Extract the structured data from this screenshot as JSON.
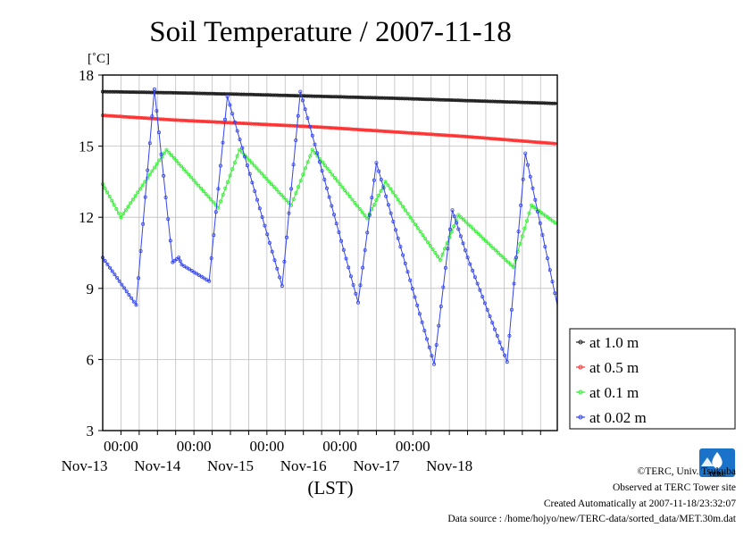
{
  "chart_data": {
    "type": "line",
    "title": "Soil Temperature / 2007-11-18",
    "ylabel": "[˚C]",
    "xlabel": "(LST)",
    "ylim": [
      3,
      18
    ],
    "yticks": [
      3,
      6,
      9,
      12,
      15,
      18
    ],
    "xlim": [
      "2007-11-12 18:00",
      "2007-11-18 23:30"
    ],
    "xtick_times": [
      "2007-11-13 00:00",
      "2007-11-14 00:00",
      "2007-11-15 00:00",
      "2007-11-16 00:00",
      "2007-11-17 00:00"
    ],
    "xtick_labels": [
      "00:00",
      "00:00",
      "00:00",
      "00:00",
      "00:00"
    ],
    "date_labels": [
      "Nov-13",
      "Nov-14",
      "Nov-15",
      "Nov-16",
      "Nov-17",
      "Nov-18"
    ],
    "grid": true,
    "legend_position": "right",
    "series": [
      {
        "name": "at 1.0 m",
        "color": "#222222",
        "x": [
          "2007-11-12 18:00",
          "2007-11-13 18:00",
          "2007-11-14 18:00",
          "2007-11-15 18:00",
          "2007-11-16 18:00",
          "2007-11-17 18:00",
          "2007-11-18 23:30"
        ],
        "values": [
          17.3,
          17.25,
          17.18,
          17.1,
          17.02,
          16.92,
          16.8
        ]
      },
      {
        "name": "at 0.5 m",
        "color": "#ff3333",
        "x": [
          "2007-11-12 18:00",
          "2007-11-13 18:00",
          "2007-11-14 18:00",
          "2007-11-15 18:00",
          "2007-11-16 18:00",
          "2007-11-17 18:00",
          "2007-11-18 23:30"
        ],
        "values": [
          16.3,
          16.1,
          15.95,
          15.8,
          15.6,
          15.4,
          15.1
        ]
      },
      {
        "name": "at 0.1 m",
        "color": "#33ee33",
        "x": [
          "2007-11-12 18:00",
          "2007-11-13 00:00",
          "2007-11-13 15:00",
          "2007-11-14 08:00",
          "2007-11-14 15:00",
          "2007-11-15 08:00",
          "2007-11-15 15:00",
          "2007-11-16 09:00",
          "2007-11-16 15:00",
          "2007-11-17 09:00",
          "2007-11-17 15:00",
          "2007-11-18 09:00",
          "2007-11-18 15:00",
          "2007-11-18 23:30"
        ],
        "values": [
          13.4,
          12.0,
          14.85,
          12.4,
          14.85,
          12.5,
          14.85,
          11.95,
          13.5,
          10.2,
          12.1,
          9.9,
          12.5,
          11.7
        ]
      },
      {
        "name": "at 0.02 m",
        "color": "#3344ee",
        "x": [
          "2007-11-12 18:00",
          "2007-11-13 05:00",
          "2007-11-13 11:00",
          "2007-11-13 17:00",
          "2007-11-13 19:00",
          "2007-11-13 20:00",
          "2007-11-14 05:00",
          "2007-11-14 11:00",
          "2007-11-15 05:00",
          "2007-11-15 11:00",
          "2007-11-16 06:00",
          "2007-11-16 12:00",
          "2007-11-17 07:00",
          "2007-11-17 13:00",
          "2007-11-17 15:00",
          "2007-11-17 18:00",
          "2007-11-18 07:00",
          "2007-11-18 13:00",
          "2007-11-18 23:30"
        ],
        "values": [
          10.3,
          8.3,
          17.4,
          10.1,
          10.3,
          10.0,
          9.3,
          17.1,
          9.1,
          17.3,
          8.4,
          14.3,
          5.8,
          12.3,
          11.5,
          10.3,
          5.9,
          14.7,
          8.3
        ]
      }
    ]
  },
  "footer": {
    "copyright": "©TERC, Univ. Tsukuba",
    "observed": "Observed at TERC Tower site",
    "created": "Created Automatically at 2007-11-18/23:32:07",
    "source": "Data source : /home/hojyo/new/TERC-data/sorted_data/MET.30m.dat"
  },
  "logo": {
    "text": "TERC",
    "color": "#1a73c9"
  }
}
